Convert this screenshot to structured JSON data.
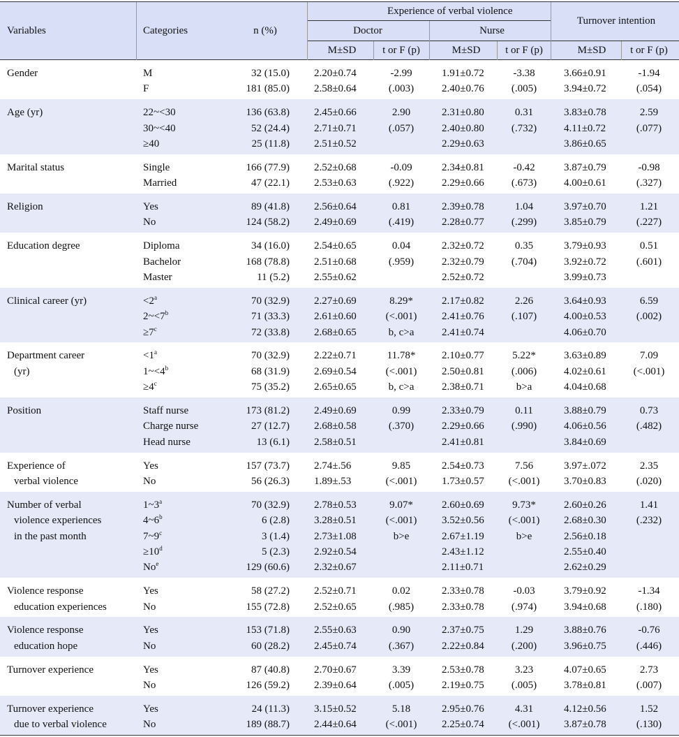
{
  "header": {
    "variables": "Variables",
    "categories": "Categories",
    "n": "n (%)",
    "experience": "Experience of verbal violence",
    "doctor": "Doctor",
    "nurse": "Nurse",
    "turnover": "Turnover intention",
    "msd": [
      "M±SD",
      "M±SD",
      "M±SD"
    ],
    "tf": [
      "t or F (p)",
      "t or F (p)",
      "t or F (p)"
    ]
  },
  "groups": [
    {
      "variable": [
        "Gender"
      ],
      "rows": [
        [
          "M",
          "32 (15.0)",
          "2.20±0.74",
          "-2.99",
          "1.91±0.72",
          "-3.38",
          "3.66±0.91",
          "-1.94"
        ],
        [
          "F",
          "181 (85.0)",
          "2.58±0.64",
          "(.003)",
          "2.40±0.76",
          "(.005)",
          "3.94±0.72",
          "(.054)"
        ]
      ]
    },
    {
      "variable": [
        "Age (yr)"
      ],
      "rows": [
        [
          "22~<30",
          "136 (63.8)",
          "2.45±0.66",
          "2.90",
          "2.31±0.80",
          "0.31",
          "3.83±0.78",
          "2.59"
        ],
        [
          "30~<40",
          "52 (24.4)",
          "2.71±0.71",
          "(.057)",
          "2.40±0.80",
          "(.732)",
          "4.11±0.72",
          "(.077)"
        ],
        [
          "≥40",
          "25 (11.8)",
          "2.51±0.52",
          null,
          "2.29±0.63",
          null,
          "3.86±0.65",
          null
        ]
      ]
    },
    {
      "variable": [
        "Marital status"
      ],
      "rows": [
        [
          "Single",
          "166 (77.9)",
          "2.52±0.68",
          "-0.09",
          "2.34±0.81",
          "-0.42",
          "3.87±0.79",
          "-0.98"
        ],
        [
          "Married",
          "47 (22.1)",
          "2.53±0.63",
          "(.922)",
          "2.29±0.66",
          "(.673)",
          "4.00±0.61",
          "(.327)"
        ]
      ]
    },
    {
      "variable": [
        "Religion"
      ],
      "rows": [
        [
          "Yes",
          "89 (41.8)",
          "2.56±0.64",
          "0.81",
          "2.39±0.78",
          "1.04",
          "3.97±0.70",
          "1.21"
        ],
        [
          "No",
          "124 (58.2)",
          "2.49±0.69",
          "(.419)",
          "2.28±0.77",
          "(.299)",
          "3.85±0.79",
          "(.227)"
        ]
      ]
    },
    {
      "variable": [
        "Education degree"
      ],
      "rows": [
        [
          "Diploma",
          "34 (16.0)",
          "2.54±0.65",
          "0.04",
          "2.32±0.72",
          "0.35",
          "3.79±0.93",
          "0.51"
        ],
        [
          "Bachelor",
          "168 (78.8)",
          "2.51±0.68",
          "(.959)",
          "2.32±0.79",
          "(.704)",
          "3.92±0.72",
          "(.601)"
        ],
        [
          "Master",
          "11 (5.2)",
          "2.55±0.62",
          null,
          "2.52±0.72",
          null,
          "3.99±0.73",
          null
        ]
      ]
    },
    {
      "variable": [
        "Clinical career (yr)"
      ],
      "rows": [
        [
          {
            "text": "<2",
            "sup": "a"
          },
          "70 (32.9)",
          "2.27±0.69",
          "8.29*",
          "2.17±0.82",
          "2.26",
          "3.64±0.93",
          "6.59"
        ],
        [
          {
            "text": "2~<7",
            "sup": "b"
          },
          "71 (33.3)",
          "2.61±0.60",
          "(<.001)",
          "2.41±0.76",
          "(.107)",
          "4.00±0.53",
          "(.002)"
        ],
        [
          {
            "text": "≥7",
            "sup": "c"
          },
          "72 (33.8)",
          "2.68±0.65",
          "b, c>a",
          "2.41±0.74",
          null,
          "4.06±0.70",
          null
        ]
      ]
    },
    {
      "variable": [
        "Department career",
        "(yr)"
      ],
      "rows": [
        [
          {
            "text": "<1",
            "sup": "a"
          },
          "70 (32.9)",
          "2.22±0.71",
          "11.78*",
          "2.10±0.77",
          "5.22*",
          "3.63±0.89",
          "7.09"
        ],
        [
          {
            "text": "1~<4",
            "sup": "b"
          },
          "68 (31.9)",
          "2.69±0.54",
          "(<.001)",
          "2.50±0.81",
          "(.006)",
          "4.02±0.61",
          "(<.001)"
        ],
        [
          {
            "text": "≥4",
            "sup": "c"
          },
          "75 (35.2)",
          "2.65±0.65",
          "b, c>a",
          "2.38±0.71",
          "b>a",
          "4.04±0.68",
          null
        ]
      ]
    },
    {
      "variable": [
        "Position"
      ],
      "rows": [
        [
          "Staff nurse",
          "173 (81.2)",
          "2.49±0.69",
          "0.99",
          "2.33±0.79",
          "0.11",
          "3.88±0.79",
          "0.73"
        ],
        [
          "Charge nurse",
          "27 (12.7)",
          "2.68±0.58",
          "(.370)",
          "2.29±0.66",
          "(.990)",
          "4.06±0.56",
          "(.482)"
        ],
        [
          "Head nurse",
          "13 (6.1)",
          "2.58±0.51",
          null,
          "2.41±0.81",
          null,
          "3.84±0.69",
          null
        ]
      ]
    },
    {
      "variable": [
        "Experience of",
        "verbal violence"
      ],
      "rows": [
        [
          "Yes",
          "157 (73.7)",
          "2.74±.56",
          "9.85",
          "2.54±0.73",
          "7.56",
          "3.97±.072",
          "2.35"
        ],
        [
          "No",
          "56 (26.3)",
          "1.89±.53",
          "(<.001)",
          "1.73±0.57",
          "(<.001)",
          "3.70±0.83",
          "(.020)"
        ]
      ]
    },
    {
      "variable": [
        "Number of verbal",
        "violence experiences",
        "in the past month"
      ],
      "rows": [
        [
          {
            "text": "1~3",
            "sup": "a"
          },
          "70 (32.9)",
          "2.78±0.53",
          "9.07*",
          "2.60±0.69",
          "9.73*",
          "2.60±0.26",
          "1.41"
        ],
        [
          {
            "text": "4~6",
            "sup": "b"
          },
          "6 (2.8)",
          "3.28±0.51",
          "(<.001)",
          "3.52±0.56",
          "(<.001)",
          "2.68±0.30",
          "(.232)"
        ],
        [
          {
            "text": "7~9",
            "sup": "c"
          },
          "3 (1.4)",
          "2.73±1.08",
          "b>e",
          "2.67±1.19",
          "b>e",
          "2.56±0.18",
          null
        ],
        [
          {
            "text": "≥10",
            "sup": "d"
          },
          "5 (2.3)",
          "2.92±0.54",
          null,
          "2.43±1.12",
          null,
          "2.55±0.40",
          null
        ],
        [
          {
            "text": "No",
            "sup": "e"
          },
          "129 (60.6)",
          "2.32±0.67",
          null,
          "2.11±0.71",
          null,
          "2.62±0.29",
          null
        ]
      ]
    },
    {
      "variable": [
        "Violence response",
        "education experiences"
      ],
      "rows": [
        [
          "Yes",
          "58 (27.2)",
          "2.52±0.71",
          "0.02",
          "2.33±0.78",
          "-0.03",
          "3.79±0.92",
          "-1.34"
        ],
        [
          "No",
          "155 (72.8)",
          "2.52±0.65",
          "(.985)",
          "2.33±0.78",
          "(.974)",
          "3.94±0.68",
          "(.180)"
        ]
      ]
    },
    {
      "variable": [
        "Violence response",
        "education hope"
      ],
      "rows": [
        [
          "Yes",
          "153 (71.8)",
          "2.55±0.63",
          "0.90",
          "2.37±0.75",
          "1.29",
          "3.88±0.76",
          "-0.76"
        ],
        [
          "No",
          "60 (28.2)",
          "2.45±0.74",
          "(.367)",
          "2.22±0.84",
          "(.200)",
          "3.96±0.75",
          "(.446)"
        ]
      ]
    },
    {
      "variable": [
        "Turnover experience"
      ],
      "rows": [
        [
          "Yes",
          "87 (40.8)",
          "2.70±0.67",
          "3.39",
          "2.53±0.78",
          "3.23",
          "4.07±0.65",
          "2.73"
        ],
        [
          "No",
          "126 (59.2)",
          "2.39±0.64",
          "(.005)",
          "2.19±0.75",
          "(.005)",
          "3.78±0.81",
          "(.007)"
        ]
      ]
    },
    {
      "variable": [
        "Turnover experience",
        "due to verbal violence"
      ],
      "rows": [
        [
          "Yes",
          "24 (11.3)",
          "3.15±0.52",
          "5.18",
          "2.95±0.76",
          "4.31",
          "4.12±0.56",
          "1.52"
        ],
        [
          "No",
          "189 (88.7)",
          "2.44±0.64",
          "(<.001)",
          "2.25±0.74",
          "(<.001)",
          "3.87±0.78",
          "(.130)"
        ]
      ]
    }
  ]
}
